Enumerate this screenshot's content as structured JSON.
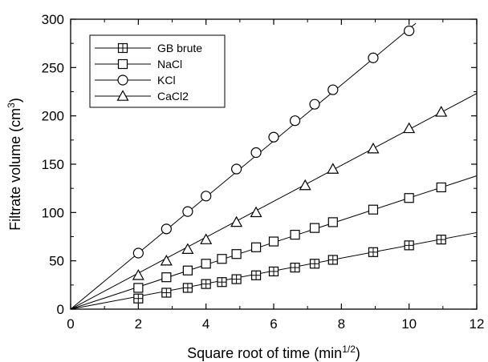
{
  "chart_data": {
    "type": "line",
    "xlabel": "Square root of time (min",
    "xlabel_sup": "1/2",
    "xlabel_end": ")",
    "ylabel": "Filtrate volume (cm",
    "ylabel_sup": "3",
    "ylabel_end": ")",
    "xlim": [
      0,
      12
    ],
    "ylim": [
      0,
      300
    ],
    "xticks": [
      0,
      2,
      4,
      6,
      8,
      10,
      12
    ],
    "yticks": [
      0,
      50,
      100,
      150,
      200,
      250,
      300
    ],
    "grid": false,
    "legend_position": "top-left",
    "colors": {
      "ink": "#000000",
      "background": "#ffffff"
    },
    "series": [
      {
        "name": "GB brute",
        "marker": "square-cross",
        "slope": 6.6,
        "fit_range": [
          0,
          12
        ],
        "x": [
          2.0,
          2.83,
          3.46,
          4.0,
          4.47,
          4.9,
          5.48,
          6.0,
          6.63,
          7.21,
          7.75,
          8.94,
          10.0,
          10.95
        ],
        "y": [
          11,
          17,
          22,
          26,
          28,
          31,
          35,
          39,
          43,
          47,
          51,
          59,
          66,
          72
        ]
      },
      {
        "name": "NaCl",
        "marker": "square",
        "slope": 11.5,
        "fit_range": [
          0,
          12
        ],
        "x": [
          2.0,
          2.83,
          3.46,
          4.0,
          4.47,
          4.9,
          5.48,
          6.0,
          6.63,
          7.21,
          7.75,
          8.94,
          10.0,
          10.95
        ],
        "y": [
          22,
          33,
          40,
          47,
          52,
          57,
          64,
          70,
          77,
          84,
          90,
          103,
          115,
          126
        ]
      },
      {
        "name": "KCl",
        "marker": "circle",
        "slope": 29.0,
        "fit_range": [
          0,
          10.2
        ],
        "x": [
          2.0,
          2.83,
          3.46,
          4.0,
          4.9,
          5.48,
          6.0,
          6.63,
          7.21,
          7.75,
          8.94,
          10.0
        ],
        "y": [
          58,
          83,
          101,
          117,
          145,
          162,
          178,
          195,
          212,
          227,
          260,
          288
        ]
      },
      {
        "name": "CaCl2",
        "marker": "triangle",
        "slope": 18.6,
        "fit_range": [
          0,
          12
        ],
        "x": [
          2.0,
          2.83,
          3.46,
          4.0,
          4.9,
          5.48,
          6.93,
          7.75,
          8.94,
          10.0,
          10.95
        ],
        "y": [
          35,
          50,
          62,
          72,
          90,
          100,
          128,
          145,
          166,
          187,
          204
        ]
      }
    ]
  }
}
